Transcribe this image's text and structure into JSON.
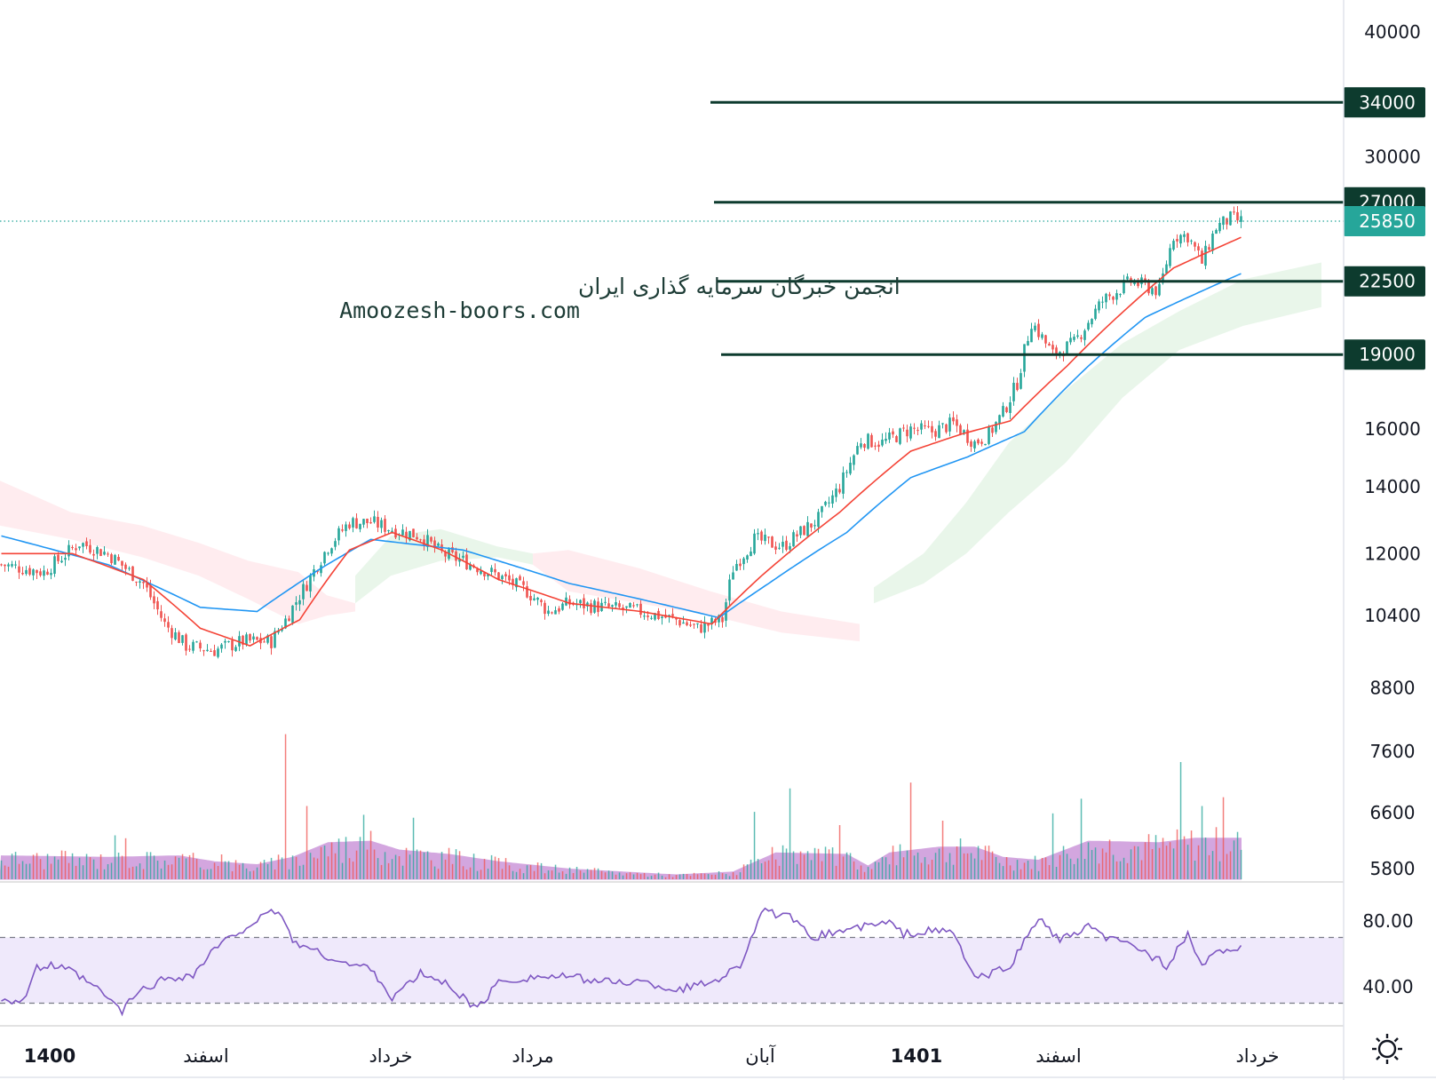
{
  "colors": {
    "up": "#26a69a",
    "down": "#ef5350",
    "ema_fast": "#f44336",
    "ema_slow": "#2196f3",
    "cloud_up": "#e8f5e9",
    "cloud_down": "#ffebee",
    "level_line": "#0d3b2e",
    "volume_ma": "#b05fc6",
    "rsi_line": "#7e57c2",
    "rsi_band": "#efe9fb"
  },
  "settings_icon": "gear-icon",
  "watermark": {
    "line1": "انجمن خبرگان سرمایه گذاری ایران",
    "line2": "Amoozesh-boors.com"
  },
  "chart_data": [
    {
      "type": "candlestick",
      "grid": false,
      "y_axis_scale": "log",
      "y_ticks": [
        "40000",
        "30000",
        "16000",
        "14000",
        "12000",
        "10400",
        "8800",
        "7600",
        "6600",
        "5800"
      ],
      "y_range": [
        5600,
        44000
      ],
      "x_tick_labels": [
        {
          "label": "1400",
          "bold": true
        },
        {
          "label": "اسفند",
          "bold": false
        },
        {
          "label": "خرداد",
          "bold": false
        },
        {
          "label": "مرداد",
          "bold": false
        },
        {
          "label": "آبان",
          "bold": false
        },
        {
          "label": "1401",
          "bold": true
        },
        {
          "label": "اسفند",
          "bold": false
        },
        {
          "label": "خرداد",
          "bold": false
        }
      ],
      "last_price": "25850",
      "horizontal_levels": [
        {
          "price": 34000,
          "label": "34000"
        },
        {
          "price": 27000,
          "label": "27000"
        },
        {
          "price": 22500,
          "label": "22500"
        },
        {
          "price": 19000,
          "label": "19000"
        }
      ],
      "close_path": [
        [
          0,
          11700
        ],
        [
          12,
          11500
        ],
        [
          22,
          12300
        ],
        [
          30,
          12000
        ],
        [
          40,
          11200
        ],
        [
          46,
          10200
        ],
        [
          52,
          9700
        ],
        [
          60,
          9600
        ],
        [
          68,
          9800
        ],
        [
          76,
          9800
        ],
        [
          80,
          10300
        ],
        [
          86,
          11200
        ],
        [
          92,
          12200
        ],
        [
          98,
          12900
        ],
        [
          104,
          12900
        ],
        [
          110,
          12700
        ],
        [
          118,
          12500
        ],
        [
          124,
          12000
        ],
        [
          130,
          11800
        ],
        [
          140,
          11400
        ],
        [
          148,
          11000
        ],
        [
          154,
          10500
        ],
        [
          160,
          10700
        ],
        [
          170,
          10600
        ],
        [
          180,
          10500
        ],
        [
          190,
          10300
        ],
        [
          196,
          10100
        ],
        [
          203,
          10300
        ],
        [
          206,
          11600
        ],
        [
          212,
          12400
        ],
        [
          220,
          12200
        ],
        [
          230,
          13000
        ],
        [
          236,
          14000
        ],
        [
          242,
          15600
        ],
        [
          248,
          15500
        ],
        [
          256,
          16000
        ],
        [
          262,
          15900
        ],
        [
          268,
          16200
        ],
        [
          274,
          15500
        ],
        [
          278,
          15800
        ],
        [
          282,
          16600
        ],
        [
          286,
          17800
        ],
        [
          290,
          20500
        ],
        [
          296,
          19000
        ],
        [
          302,
          19500
        ],
        [
          310,
          21500
        ],
        [
          318,
          22500
        ],
        [
          326,
          22000
        ],
        [
          330,
          25000
        ],
        [
          334,
          25000
        ],
        [
          338,
          23500
        ],
        [
          342,
          25500
        ],
        [
          346,
          26000
        ],
        [
          349,
          25850
        ]
      ],
      "ema_fast_path": [
        [
          0,
          12000
        ],
        [
          20,
          12000
        ],
        [
          40,
          11300
        ],
        [
          56,
          10100
        ],
        [
          70,
          9700
        ],
        [
          84,
          10300
        ],
        [
          98,
          12100
        ],
        [
          110,
          12600
        ],
        [
          124,
          12100
        ],
        [
          140,
          11300
        ],
        [
          160,
          10700
        ],
        [
          180,
          10500
        ],
        [
          200,
          10200
        ],
        [
          214,
          11400
        ],
        [
          236,
          13200
        ],
        [
          256,
          15200
        ],
        [
          270,
          15800
        ],
        [
          284,
          16300
        ],
        [
          300,
          18500
        ],
        [
          316,
          21000
        ],
        [
          330,
          23200
        ],
        [
          349,
          24900
        ]
      ],
      "ema_slow_path": [
        [
          0,
          12500
        ],
        [
          30,
          11700
        ],
        [
          56,
          10600
        ],
        [
          72,
          10500
        ],
        [
          90,
          11600
        ],
        [
          104,
          12400
        ],
        [
          130,
          12100
        ],
        [
          160,
          11200
        ],
        [
          180,
          10800
        ],
        [
          202,
          10350
        ],
        [
          216,
          11200
        ],
        [
          238,
          12600
        ],
        [
          256,
          14300
        ],
        [
          272,
          15000
        ],
        [
          288,
          15900
        ],
        [
          306,
          18500
        ],
        [
          322,
          20700
        ],
        [
          338,
          22000
        ],
        [
          349,
          22900
        ]
      ],
      "ichimoku_cloud": [
        {
          "x_range": [
            0,
            84
          ],
          "color": "red",
          "upper": [
            [
              0,
              14200
            ],
            [
              20,
              13200
            ],
            [
              40,
              12800
            ],
            [
              56,
              12300
            ],
            [
              70,
              11800
            ],
            [
              84,
              11500
            ]
          ],
          "lower": [
            [
              0,
              12800
            ],
            [
              20,
              12400
            ],
            [
              40,
              11900
            ],
            [
              56,
              11400
            ],
            [
              70,
              10800
            ],
            [
              84,
              10200
            ]
          ]
        },
        {
          "x_range": [
            84,
            100
          ],
          "color": "red",
          "upper": [
            [
              84,
              11500
            ],
            [
              92,
              10900
            ],
            [
              100,
              10700
            ]
          ],
          "lower": [
            [
              84,
              10200
            ],
            [
              92,
              10400
            ],
            [
              100,
              10500
            ]
          ]
        },
        {
          "x_range": [
            100,
            150
          ],
          "color": "green",
          "upper": [
            [
              100,
              11400
            ],
            [
              110,
              12500
            ],
            [
              124,
              12700
            ],
            [
              140,
              12200
            ],
            [
              150,
              12000
            ]
          ],
          "lower": [
            [
              100,
              10700
            ],
            [
              110,
              11400
            ],
            [
              124,
              11800
            ],
            [
              140,
              11900
            ],
            [
              150,
              11700
            ]
          ]
        },
        {
          "x_range": [
            150,
            242
          ],
          "color": "red",
          "upper": [
            [
              150,
              12000
            ],
            [
              160,
              12100
            ],
            [
              180,
              11600
            ],
            [
              200,
              11000
            ],
            [
              220,
              10500
            ],
            [
              242,
              10200
            ]
          ],
          "lower": [
            [
              150,
              11700
            ],
            [
              160,
              11000
            ],
            [
              180,
              10700
            ],
            [
              200,
              10400
            ],
            [
              220,
              10000
            ],
            [
              242,
              9800
            ]
          ]
        },
        {
          "x_range": [
            246,
            372
          ],
          "color": "green",
          "upper": [
            [
              246,
              11100
            ],
            [
              260,
              12000
            ],
            [
              272,
              13500
            ],
            [
              284,
              15500
            ],
            [
              300,
              17500
            ],
            [
              316,
              19500
            ],
            [
              332,
              21000
            ],
            [
              350,
              22600
            ],
            [
              372,
              23500
            ]
          ],
          "lower": [
            [
              246,
              10700
            ],
            [
              260,
              11200
            ],
            [
              272,
              12000
            ],
            [
              284,
              13200
            ],
            [
              300,
              14800
            ],
            [
              316,
              17200
            ],
            [
              332,
              19200
            ],
            [
              350,
              20300
            ],
            [
              372,
              21200
            ]
          ]
        }
      ]
    },
    {
      "type": "bar",
      "name": "volume",
      "volume_ma_path": [
        [
          0,
          0.16
        ],
        [
          30,
          0.15
        ],
        [
          50,
          0.16
        ],
        [
          60,
          0.12
        ],
        [
          72,
          0.1
        ],
        [
          82,
          0.15
        ],
        [
          92,
          0.25
        ],
        [
          104,
          0.26
        ],
        [
          112,
          0.2
        ],
        [
          126,
          0.17
        ],
        [
          140,
          0.12
        ],
        [
          160,
          0.07
        ],
        [
          190,
          0.03
        ],
        [
          206,
          0.05
        ],
        [
          218,
          0.18
        ],
        [
          238,
          0.17
        ],
        [
          244,
          0.09
        ],
        [
          250,
          0.18
        ],
        [
          264,
          0.22
        ],
        [
          274,
          0.22
        ],
        [
          282,
          0.15
        ],
        [
          292,
          0.13
        ],
        [
          306,
          0.26
        ],
        [
          326,
          0.25
        ],
        [
          336,
          0.28
        ],
        [
          349,
          0.28
        ]
      ],
      "volume_spikes": [
        [
          32,
          0.3
        ],
        [
          35,
          0.28
        ],
        [
          62,
          0.17
        ],
        [
          80,
          0.99
        ],
        [
          86,
          0.5
        ],
        [
          102,
          0.44
        ],
        [
          116,
          0.42
        ],
        [
          212,
          0.46
        ],
        [
          222,
          0.62
        ],
        [
          236,
          0.37
        ],
        [
          256,
          0.66
        ],
        [
          265,
          0.4
        ],
        [
          296,
          0.45
        ],
        [
          304,
          0.55
        ],
        [
          332,
          0.8
        ],
        [
          338,
          0.5
        ],
        [
          344,
          0.56
        ]
      ]
    },
    {
      "type": "line",
      "name": "RSI",
      "y_ticks": [
        "80.00",
        "40.00"
      ],
      "y_range": [
        20,
        100
      ],
      "band": [
        30,
        70
      ],
      "values_path": [
        [
          0,
          33
        ],
        [
          6,
          31
        ],
        [
          10,
          51
        ],
        [
          14,
          53
        ],
        [
          20,
          49
        ],
        [
          24,
          43
        ],
        [
          28,
          37
        ],
        [
          34,
          25
        ],
        [
          38,
          36
        ],
        [
          46,
          45
        ],
        [
          54,
          47
        ],
        [
          60,
          63
        ],
        [
          70,
          78
        ],
        [
          78,
          87
        ],
        [
          82,
          68
        ],
        [
          90,
          60
        ],
        [
          98,
          53
        ],
        [
          104,
          52
        ],
        [
          110,
          33
        ],
        [
          118,
          48
        ],
        [
          126,
          41
        ],
        [
          134,
          26
        ],
        [
          140,
          43
        ],
        [
          150,
          46
        ],
        [
          160,
          46
        ],
        [
          170,
          43
        ],
        [
          180,
          43
        ],
        [
          190,
          38
        ],
        [
          200,
          43
        ],
        [
          208,
          53
        ],
        [
          214,
          86
        ],
        [
          222,
          82
        ],
        [
          228,
          70
        ],
        [
          236,
          74
        ],
        [
          244,
          77
        ],
        [
          250,
          79
        ],
        [
          254,
          72
        ],
        [
          262,
          74
        ],
        [
          268,
          73
        ],
        [
          274,
          45
        ],
        [
          278,
          47
        ],
        [
          284,
          53
        ],
        [
          292,
          82
        ],
        [
          298,
          68
        ],
        [
          306,
          76
        ],
        [
          312,
          69
        ],
        [
          320,
          64
        ],
        [
          328,
          53
        ],
        [
          334,
          71
        ],
        [
          338,
          53
        ],
        [
          344,
          63
        ],
        [
          349,
          63
        ]
      ]
    }
  ]
}
